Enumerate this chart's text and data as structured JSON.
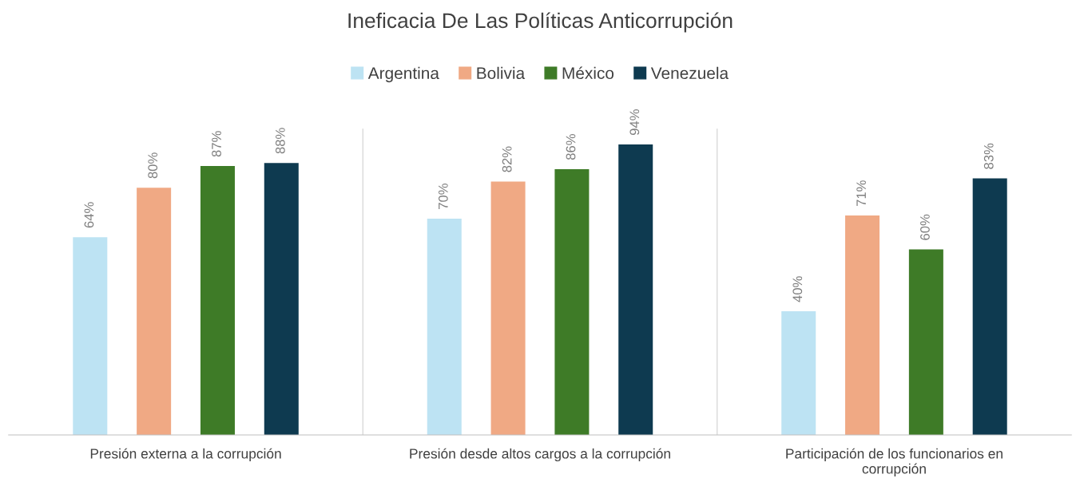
{
  "chart_data": {
    "type": "bar",
    "title": "Ineficacia De Las Políticas Anticorrupción",
    "categories": [
      "Presión externa a la corrupción",
      "Presión desde altos cargos a la corrupción",
      "Participación de los funcionarios en\ncorrupción"
    ],
    "series": [
      {
        "name": "Argentina",
        "color": "#bde3f3",
        "values": [
          64,
          70,
          40
        ],
        "value_labels": [
          "64%",
          "70%",
          "40%"
        ]
      },
      {
        "name": "Bolivia",
        "color": "#f0a984",
        "values": [
          80,
          82,
          71
        ],
        "value_labels": [
          "80%",
          "82%",
          "71%"
        ]
      },
      {
        "name": "México",
        "color": "#3e7b27",
        "values": [
          87,
          86,
          60
        ],
        "value_labels": [
          "87%",
          "86%",
          "60%"
        ]
      },
      {
        "name": "Venezuela",
        "color": "#0e3a50",
        "values": [
          88,
          94,
          83
        ],
        "value_labels": [
          "88%",
          "94%",
          "83%"
        ]
      }
    ],
    "legend": "top",
    "grid": false,
    "tick_labels": "x"
  }
}
